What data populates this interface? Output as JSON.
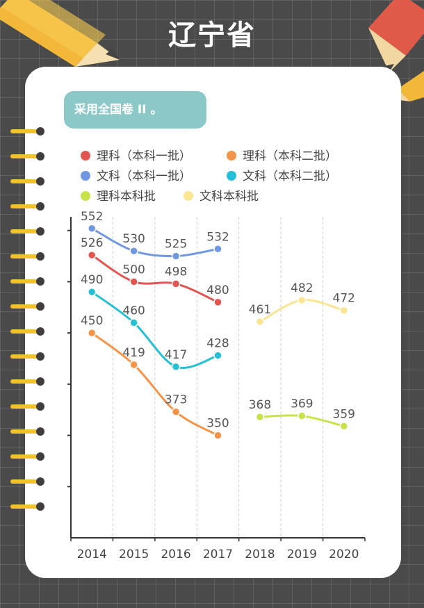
{
  "page": {
    "title": "辽宁省",
    "note": "采用全国卷 II 。"
  },
  "colors": {
    "background": "#4a4a4a",
    "card": "#ffffff",
    "badge": "#8cc8c7",
    "axis": "#333333"
  },
  "chart_data": {
    "type": "line",
    "title": "",
    "xlabel": "",
    "ylabel": "",
    "categories": [
      "2014",
      "2015",
      "2016",
      "2017",
      "2018",
      "2019",
      "2020"
    ],
    "ylim": [
      250,
      600
    ],
    "grid": {
      "vertical_dashed": true,
      "horizontal": false
    },
    "legend": "top",
    "series": [
      {
        "name": "理科（本科一批）",
        "color": "#e25550",
        "values": [
          526,
          500,
          498,
          480,
          null,
          null,
          null
        ]
      },
      {
        "name": "理科（本科二批）",
        "color": "#f59448",
        "values": [
          450,
          419,
          373,
          350,
          null,
          null,
          null
        ]
      },
      {
        "name": "文科（本科一批）",
        "color": "#6f97e2",
        "values": [
          552,
          530,
          525,
          532,
          null,
          null,
          null
        ]
      },
      {
        "name": "文科（本科二批）",
        "color": "#25bfd6",
        "values": [
          490,
          460,
          417,
          428,
          null,
          null,
          null
        ]
      },
      {
        "name": "理科本科批",
        "color": "#c8e34a",
        "values": [
          null,
          null,
          null,
          null,
          368,
          369,
          359
        ]
      },
      {
        "name": "文科本科批",
        "color": "#fbe592",
        "values": [
          null,
          null,
          null,
          null,
          461,
          482,
          472
        ]
      }
    ]
  }
}
